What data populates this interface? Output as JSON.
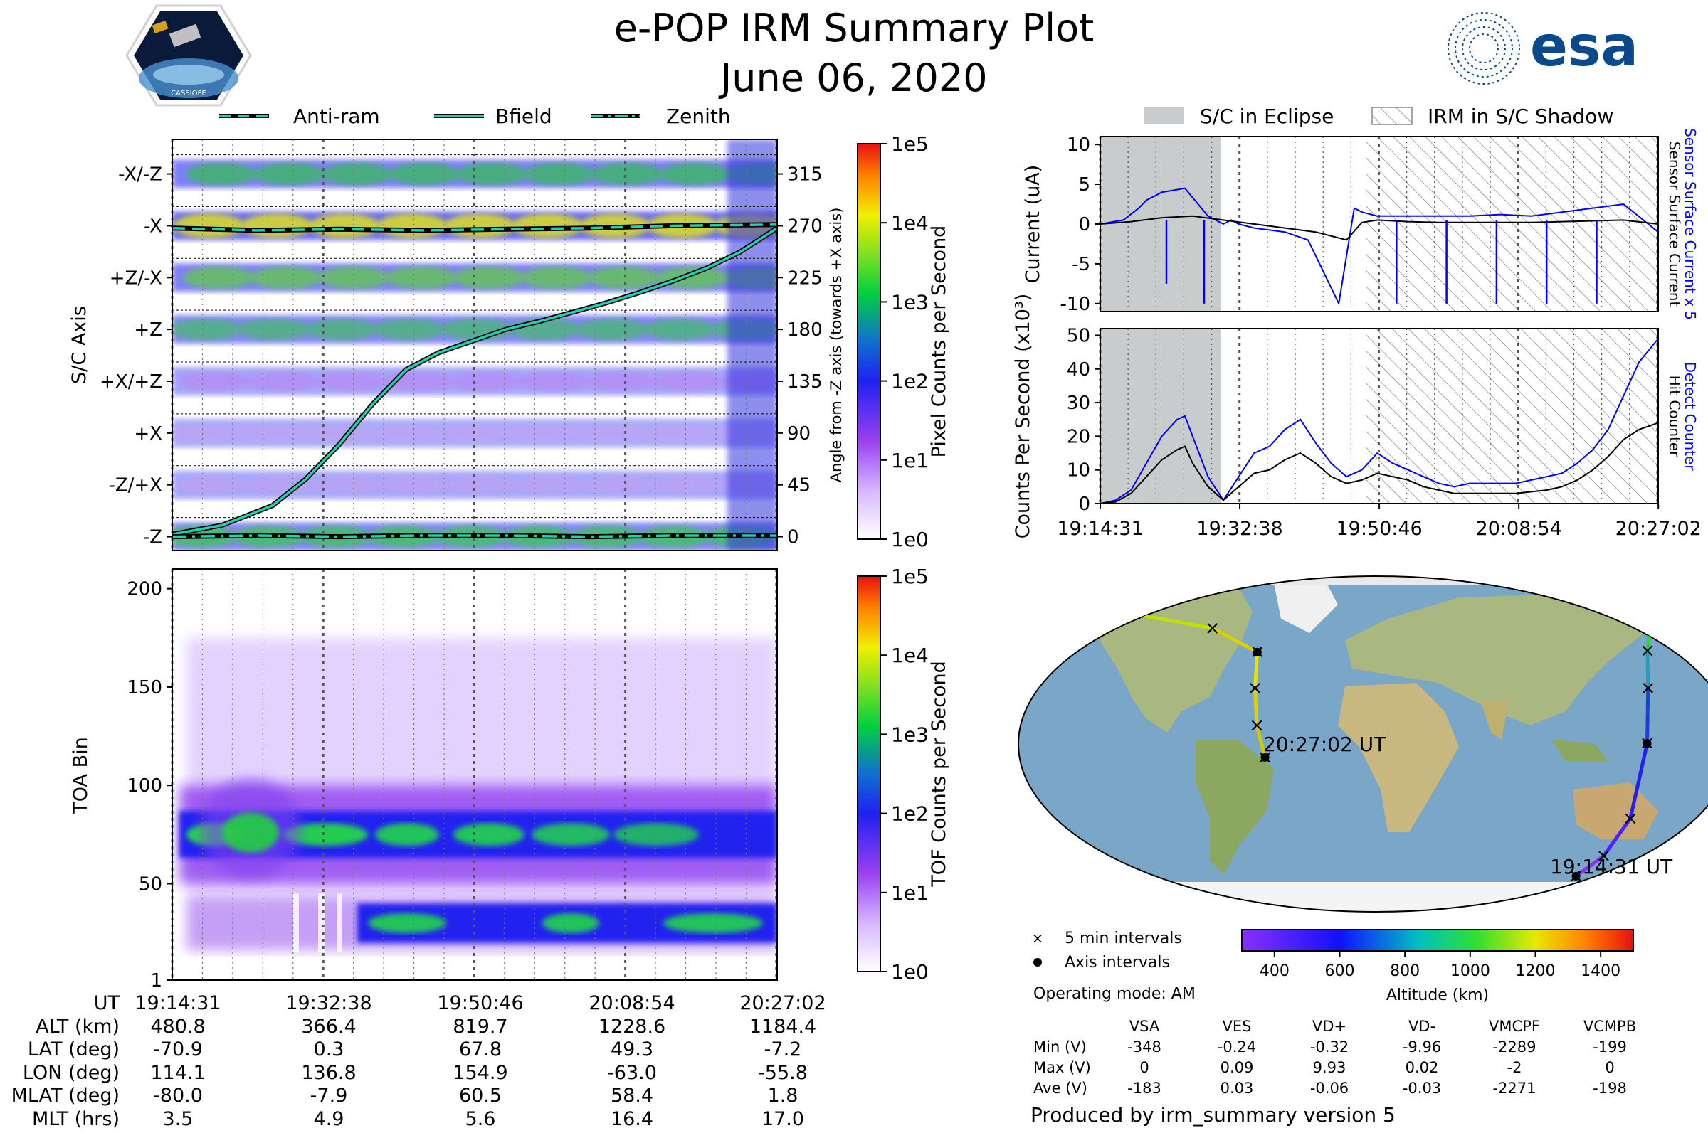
{
  "header": {
    "title": "e-POP IRM Summary Plot",
    "date": "June 06, 2020",
    "mission_logo_text": "CASSIOPE",
    "agency_logo_text": "esa"
  },
  "top_legend": [
    {
      "label": "Anti-ram",
      "style": "dashed"
    },
    {
      "label": "Bfield",
      "style": "solid"
    },
    {
      "label": "Zenith",
      "style": "dashdot"
    }
  ],
  "right_legend": [
    {
      "label": "S/C in Eclipse",
      "style": "fill"
    },
    {
      "label": "IRM in S/C Shadow",
      "style": "hatch"
    }
  ],
  "time_ticks": [
    "19:14:31",
    "19:32:38",
    "19:50:46",
    "20:08:54",
    "20:27:02"
  ],
  "colors": {
    "bfield": "#20d0b0",
    "sensor_current": "#0000ff",
    "surface_current": "#000000",
    "eclipse_fill": "#c8cccc",
    "map_ocean": "#7aa6c8",
    "map_land": "#b8c28e"
  },
  "chart_data": [
    {
      "id": "axis-spectrogram",
      "type": "heatmap",
      "ylabel": "S/C Axis",
      "y_categories": [
        "-Z",
        "-Z/+X",
        "+X",
        "+X/+Z",
        "+Z",
        "+Z/-X",
        "-X",
        "-X/-Z"
      ],
      "right_ylabel": "Angle from -Z axis (towards +X axis)",
      "right_ticks": [
        0,
        45,
        90,
        135,
        180,
        225,
        270,
        315
      ],
      "ylim": [
        -12,
        345
      ],
      "colorbar": {
        "label": "Pixel Counts per Second",
        "ticks": [
          "1e0",
          "1e1",
          "1e2",
          "1e3",
          "1e4",
          "1e5"
        ],
        "scale": "log"
      },
      "overlays": [
        {
          "name": "Anti-ram",
          "style": "dashed",
          "x_min": [
            0,
            10,
            20,
            30,
            40,
            50,
            60,
            72.5
          ],
          "angle_deg": [
            268,
            266,
            267,
            266,
            267,
            268,
            270,
            271
          ]
        },
        {
          "name": "Bfield",
          "style": "solid",
          "x_min": [
            0,
            6,
            12,
            16,
            20,
            24,
            28,
            32,
            36,
            40,
            44,
            48,
            52,
            56,
            60,
            64,
            68,
            72.5
          ],
          "angle_deg": [
            2,
            10,
            27,
            50,
            80,
            115,
            145,
            160,
            170,
            180,
            187,
            195,
            203,
            212,
            222,
            233,
            247,
            268
          ]
        },
        {
          "name": "Zenith",
          "style": "dashdot",
          "x_min": [
            0,
            10,
            20,
            30,
            40,
            50,
            60,
            72.5
          ],
          "angle_deg": [
            0,
            1,
            0,
            1,
            1,
            0,
            1,
            1
          ]
        }
      ]
    },
    {
      "id": "toa-spectrogram",
      "type": "heatmap",
      "ylabel": "TOA Bin",
      "y_ticks": [
        1,
        50,
        100,
        150,
        200
      ],
      "ylim": [
        1,
        210
      ],
      "colorbar": {
        "label": "TOF Counts per Second",
        "ticks": [
          "1e0",
          "1e1",
          "1e2",
          "1e3",
          "1e4",
          "1e5"
        ],
        "scale": "log"
      },
      "bands": [
        {
          "name": "main band",
          "center_bin": 75,
          "halfwidth_bins": 12
        },
        {
          "name": "low band",
          "center_bin": 30,
          "halfwidth_bins": 10
        }
      ]
    },
    {
      "id": "current-plot",
      "type": "line",
      "ylabel": "Current (uA)",
      "y_ticks": [
        -10,
        -5,
        0,
        5,
        10
      ],
      "ylim": [
        -11,
        11
      ],
      "right_labels": [
        "Sensor Surface Current x 5",
        "Sensor Surface Current"
      ],
      "series": [
        {
          "name": "Sensor Surface Current x 5",
          "color": "#0000ff",
          "x_min": [
            0,
            3,
            5,
            6,
            8,
            11,
            14,
            15,
            16,
            17,
            18,
            20,
            24,
            27,
            29,
            31,
            33,
            34,
            36,
            40,
            44,
            48,
            52,
            56,
            60,
            64,
            68,
            72.5
          ],
          "y": [
            0,
            0.5,
            2,
            3,
            4,
            4.5,
            1,
            0.5,
            0,
            0.5,
            0,
            -0.5,
            -1,
            -2,
            -6,
            -10,
            2,
            1.5,
            1,
            1,
            1,
            1,
            1.2,
            1,
            1.5,
            2,
            2.5,
            -1
          ]
        },
        {
          "name": "Sensor Surface Current",
          "color": "#000000",
          "x_min": [
            0,
            4,
            8,
            12,
            16,
            20,
            24,
            28,
            32,
            34,
            36,
            40,
            44,
            48,
            52,
            56,
            60,
            64,
            68,
            72.5
          ],
          "y": [
            0,
            0.3,
            0.8,
            1,
            0.5,
            0,
            -0.5,
            -1,
            -2,
            0.2,
            0.5,
            0.3,
            0.2,
            0.2,
            0.2,
            0.2,
            0.3,
            0.4,
            0.5,
            0
          ]
        }
      ],
      "spikes": [
        {
          "x_min": 8.6,
          "y": -7.5
        },
        {
          "x_min": 13.5,
          "y": -10
        },
        {
          "x_min": 38.5,
          "y": -10
        },
        {
          "x_min": 45,
          "y": -10
        },
        {
          "x_min": 51.5,
          "y": -10
        },
        {
          "x_min": 58,
          "y": -10
        },
        {
          "x_min": 64.5,
          "y": -10
        }
      ]
    },
    {
      "id": "counts-plot",
      "type": "line",
      "ylabel": "Counts Per Second (x10³)",
      "y_ticks": [
        0,
        10,
        20,
        30,
        40,
        50
      ],
      "ylim": [
        0,
        52
      ],
      "right_labels": [
        "Detect Counter",
        "Hit Counter"
      ],
      "series": [
        {
          "name": "Detect Counter",
          "color": "#0000ff",
          "x_min": [
            0,
            2,
            4,
            6,
            8,
            10,
            11,
            12,
            14,
            16,
            18,
            20,
            22,
            24,
            26,
            28,
            30,
            32,
            34,
            36,
            38,
            40,
            42,
            44,
            46,
            48,
            50,
            52,
            54,
            56,
            58,
            60,
            62,
            64,
            66,
            68,
            70,
            72.5
          ],
          "y": [
            0,
            1,
            4,
            12,
            20,
            25,
            26,
            20,
            8,
            1,
            8,
            15,
            17,
            22,
            25,
            18,
            12,
            8,
            10,
            15,
            12,
            10,
            8,
            6,
            5,
            6,
            6,
            6,
            6,
            7,
            8,
            9,
            12,
            16,
            22,
            32,
            42,
            49
          ]
        },
        {
          "name": "Hit Counter",
          "color": "#000000",
          "x_min": [
            0,
            2,
            4,
            6,
            8,
            10,
            11,
            12,
            14,
            16,
            18,
            20,
            22,
            24,
            26,
            28,
            30,
            32,
            34,
            36,
            38,
            40,
            42,
            44,
            46,
            48,
            50,
            52,
            54,
            56,
            58,
            60,
            62,
            64,
            66,
            68,
            70,
            72.5
          ],
          "y": [
            0,
            0.5,
            3,
            8,
            13,
            16,
            17,
            12,
            5,
            1,
            5,
            9,
            10,
            13,
            15,
            12,
            8,
            6,
            7,
            9,
            8,
            7,
            5,
            4,
            3,
            3,
            3,
            3,
            3,
            3.5,
            4,
            5,
            7,
            10,
            14,
            19,
            22,
            24
          ]
        }
      ]
    },
    {
      "id": "orbit-map",
      "type": "scatter",
      "altitude_colorbar": {
        "label": "Altitude (km)",
        "ticks": [
          400,
          600,
          800,
          1000,
          1200,
          1400
        ],
        "range": [
          300,
          1500
        ]
      },
      "start_label": "19:14:31 UT",
      "end_label": "20:27:02 UT",
      "track_lonlat": [
        [
          114.1,
          -70.9
        ],
        [
          125,
          -60
        ],
        [
          133,
          -40
        ],
        [
          136.8,
          0.3
        ],
        [
          140,
          30
        ],
        [
          145,
          50
        ],
        [
          154.9,
          67.8
        ],
        [
          -170,
          75
        ],
        [
          -90,
          62
        ],
        [
          -63,
          49.3
        ],
        [
          -62,
          30
        ],
        [
          -60,
          10
        ],
        [
          -55.8,
          -7.2
        ]
      ],
      "legend": [
        {
          "label": "5 min intervals",
          "marker": "x"
        },
        {
          "label": "Axis intervals",
          "marker": "dot"
        }
      ]
    }
  ],
  "axis_intervals": {
    "row_labels": [
      "UT",
      "ALT (km)",
      "LAT (deg)",
      "LON (deg)",
      "MLAT (deg)",
      "MLT (hrs)"
    ],
    "columns": [
      [
        "19:14:31",
        "480.8",
        "-70.9",
        "114.1",
        "-80.0",
        "3.5"
      ],
      [
        "19:32:38",
        "366.4",
        "0.3",
        "136.8",
        "-7.9",
        "4.9"
      ],
      [
        "19:50:46",
        "819.7",
        "67.8",
        "154.9",
        "60.5",
        "5.6"
      ],
      [
        "20:08:54",
        "1228.6",
        "49.3",
        "-63.0",
        "58.4",
        "16.4"
      ],
      [
        "20:27:02",
        "1184.4",
        "-7.2",
        "-55.8",
        "1.8",
        "17.0"
      ]
    ]
  },
  "info": {
    "interval_5min": "5 min intervals",
    "interval_axis": "Axis intervals",
    "operating_mode": "Operating mode: AM",
    "produced_by": "Produced by irm_summary version 5"
  },
  "voltage_table": {
    "headers": [
      "VSA",
      "VES",
      "VD+",
      "VD-",
      "VMCPF",
      "VCMPB"
    ],
    "rows": [
      {
        "label": "Min (V)",
        "values": [
          "-348",
          "-0.24",
          "-0.32",
          "-9.96",
          "-2289",
          "-199"
        ]
      },
      {
        "label": "Max (V)",
        "values": [
          "0",
          "0.09",
          "9.93",
          "0.02",
          "-2",
          "0"
        ]
      },
      {
        "label": "Ave (V)",
        "values": [
          "-183",
          "0.03",
          "-0.06",
          "-0.03",
          "-2271",
          "-198"
        ]
      }
    ]
  }
}
